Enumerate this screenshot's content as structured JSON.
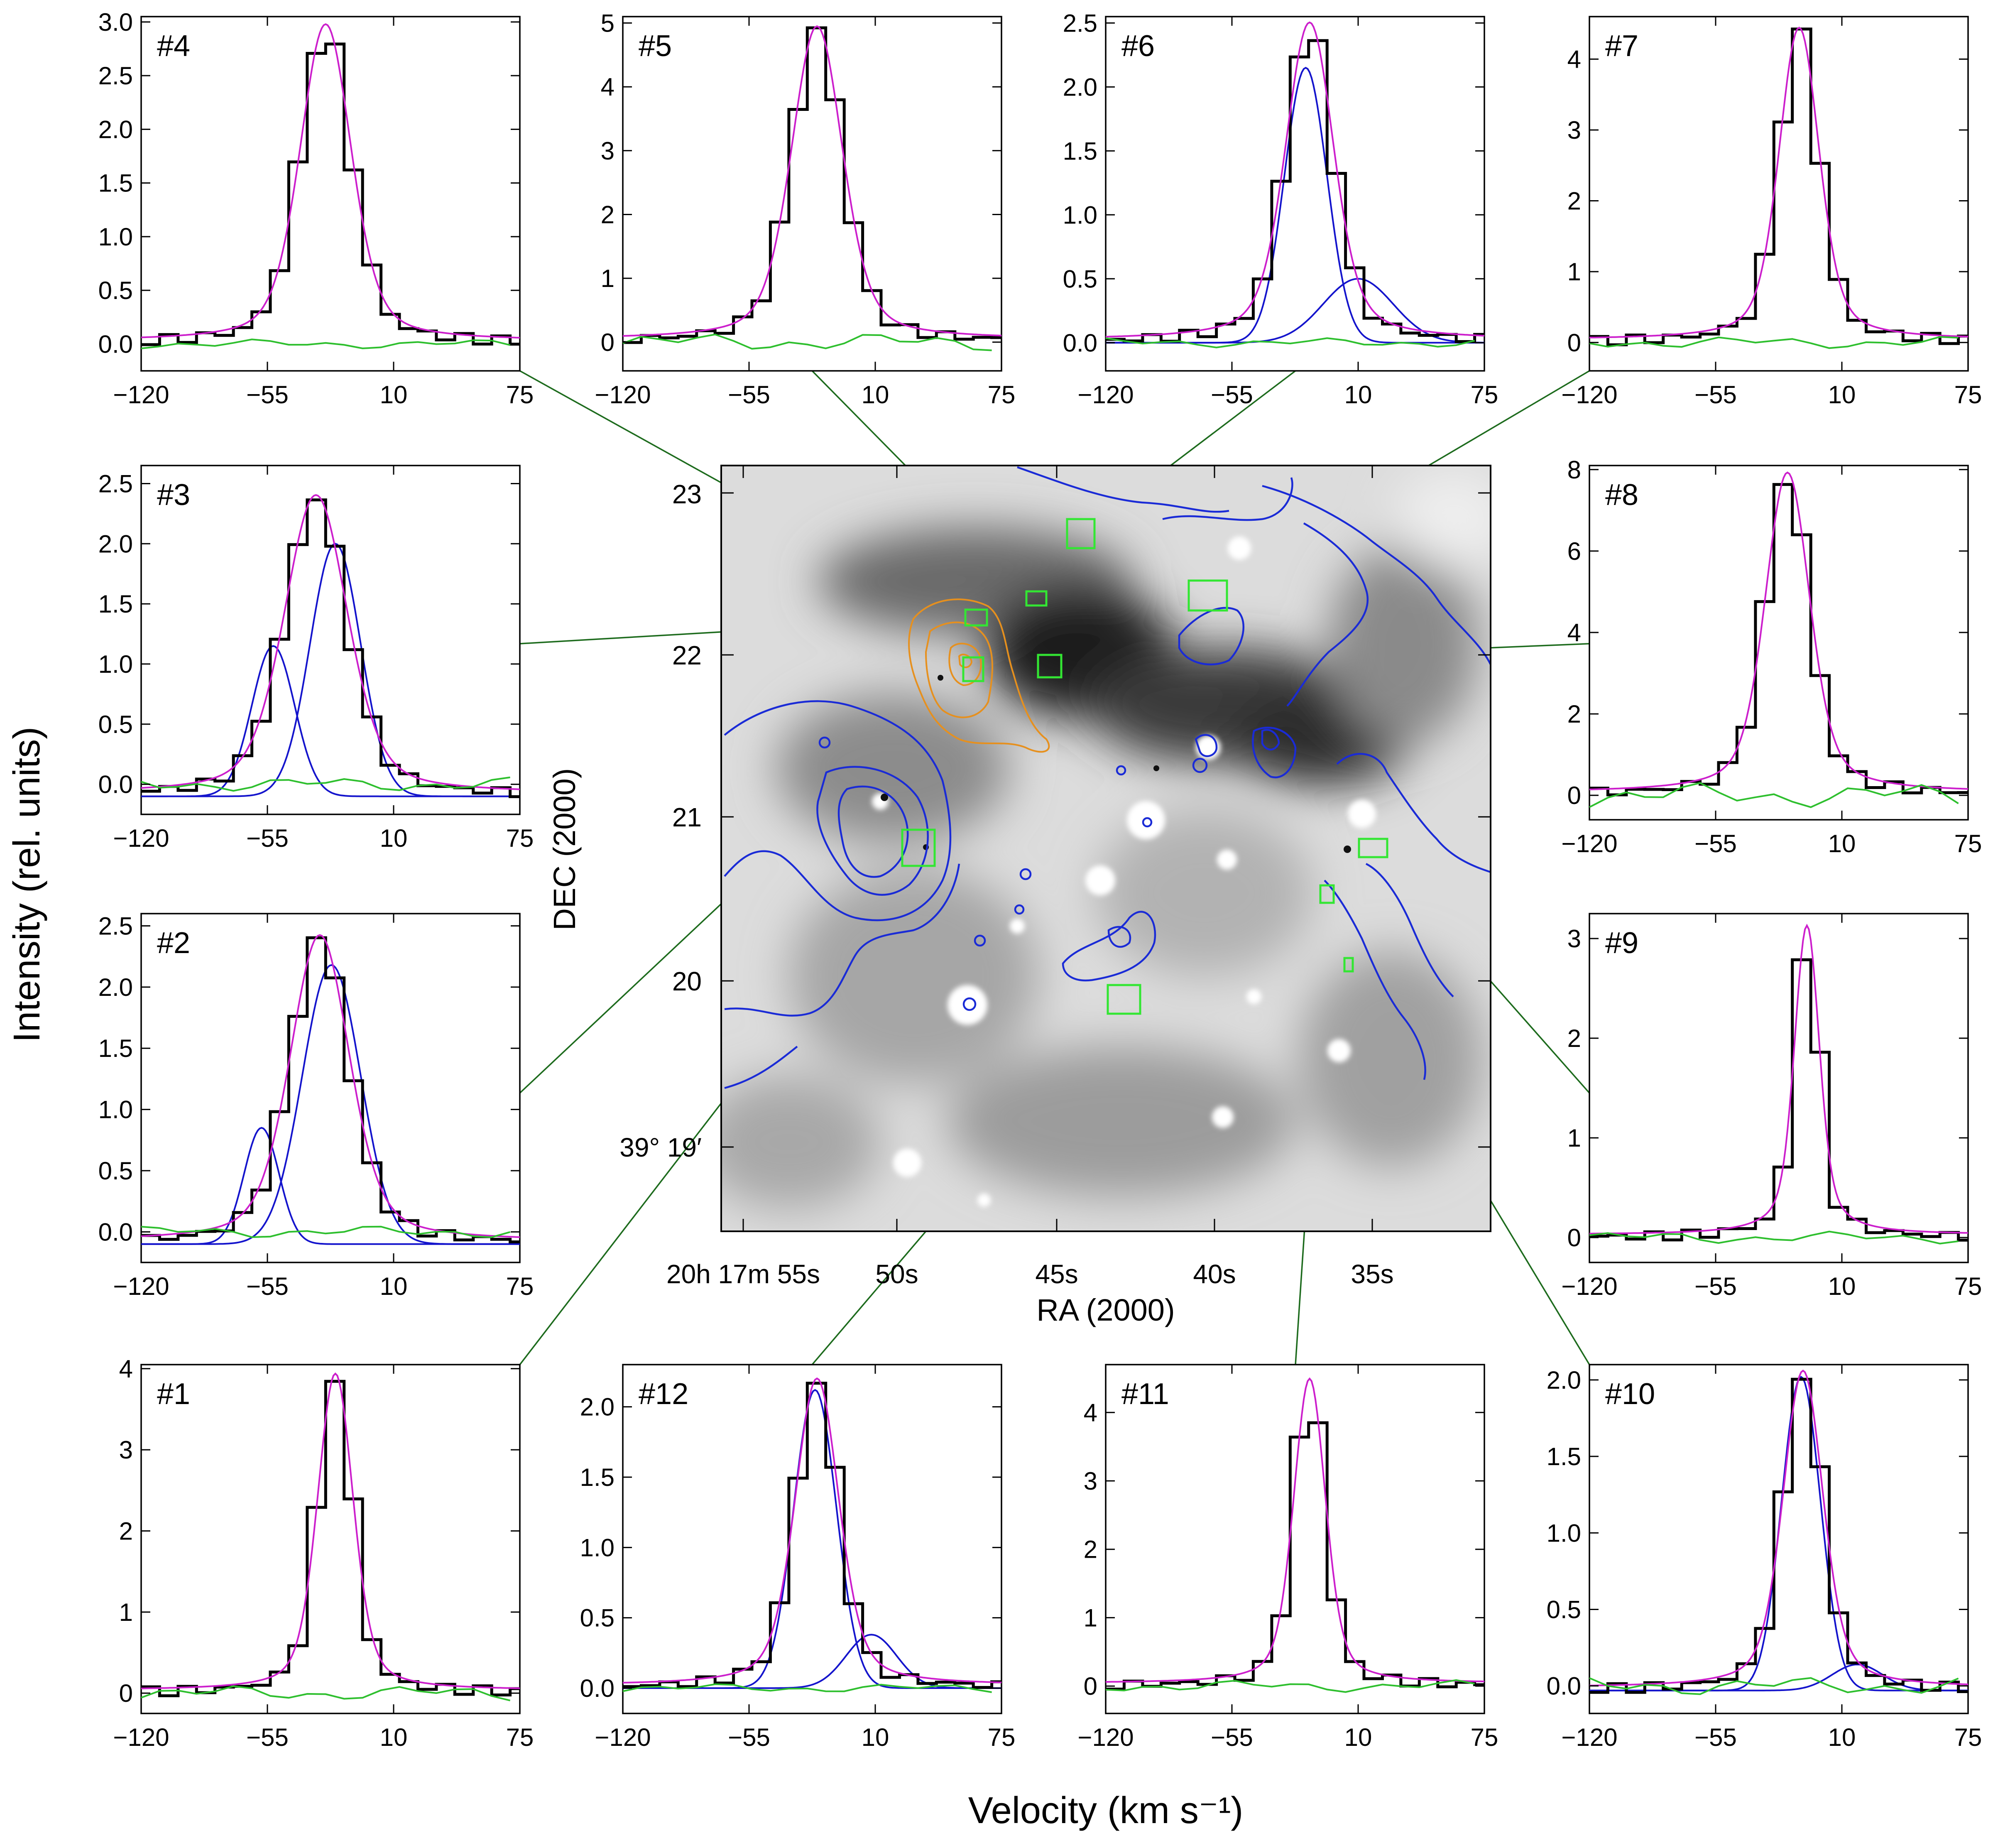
{
  "figure": {
    "ylabel": "Intensity (rel. units)",
    "xlabel": "Velocity (km s⁻¹)",
    "colors": {
      "observed": "#000000",
      "total_fit": "#cc1fcc",
      "components": "#1414cc",
      "residual": "#2ebf2e",
      "leader": "#1d6b1d",
      "aperture": "#33e633",
      "contour_blue": "#1a2bd6",
      "contour_orange": "#e6901e"
    }
  },
  "map": {
    "ra_label": "RA (2000)",
    "dec_label": "DEC (2000)",
    "ra_ticks": [
      "20h 17m 55s",
      "50s",
      "45s",
      "40s",
      "35s"
    ],
    "dec_ticks": [
      "23",
      "22",
      "21",
      "20",
      "39° 19′"
    ]
  },
  "chart_data": [
    {
      "type": "line",
      "label": "#1",
      "xlabel": "Velocity (km s⁻¹)",
      "ylabel": "Intensity (rel. units)",
      "xlim": [
        -120,
        75
      ],
      "ylim": [
        -0.25,
        4.05
      ],
      "x_ticks": [
        "−120",
        "−55",
        "10",
        "75"
      ],
      "y_ticks": [
        "0",
        "1",
        "2",
        "3",
        "4"
      ],
      "y_tick_values": [
        0,
        1,
        2,
        3,
        4
      ],
      "peak": 3.9,
      "center": -20,
      "sigma": 9,
      "gamma": 12,
      "components": [],
      "residual_amp": 0.05
    },
    {
      "type": "line",
      "label": "#2",
      "xlabel": "Velocity (km s⁻¹)",
      "ylabel": "Intensity (rel. units)",
      "xlim": [
        -120,
        75
      ],
      "ylim": [
        -0.25,
        2.6
      ],
      "x_ticks": [
        "−120",
        "−55",
        "10",
        "75"
      ],
      "y_ticks": [
        "0.0",
        "0.5",
        "1.0",
        "1.5",
        "2.0",
        "2.5"
      ],
      "y_tick_values": [
        0,
        0.5,
        1.0,
        1.5,
        2.0,
        2.5
      ],
      "peak": 2.5,
      "center": -28,
      "sigma": 15,
      "gamma": 20,
      "components": [
        {
          "amp": 0.95,
          "center": -58,
          "sigma": 9
        },
        {
          "amp": 2.28,
          "center": -22,
          "sigma": 15
        }
      ],
      "baseline": -0.1,
      "residual_amp": 0.04
    },
    {
      "type": "line",
      "label": "#3",
      "xlabel": "Velocity (km s⁻¹)",
      "ylabel": "Intensity (rel. units)",
      "xlim": [
        -120,
        75
      ],
      "ylim": [
        -0.25,
        2.65
      ],
      "x_ticks": [
        "−120",
        "−55",
        "10",
        "75"
      ],
      "y_ticks": [
        "0.0",
        "0.5",
        "1.0",
        "1.5",
        "2.0",
        "2.5"
      ],
      "y_tick_values": [
        0,
        0.5,
        1.0,
        1.5,
        2.0,
        2.5
      ],
      "peak": 2.48,
      "center": -30,
      "sigma": 16,
      "gamma": 21,
      "components": [
        {
          "amp": 1.25,
          "center": -52,
          "sigma": 11
        },
        {
          "amp": 2.1,
          "center": -20,
          "sigma": 13
        }
      ],
      "baseline": -0.1,
      "residual_amp": 0.05
    },
    {
      "type": "line",
      "label": "#4",
      "xlabel": "Velocity (km s⁻¹)",
      "ylabel": "Intensity (rel. units)",
      "xlim": [
        -120,
        75
      ],
      "ylim": [
        -0.25,
        3.05
      ],
      "x_ticks": [
        "−120",
        "−55",
        "10",
        "75"
      ],
      "y_ticks": [
        "0.0",
        "0.5",
        "1.0",
        "1.5",
        "2.0",
        "2.5",
        "3.0"
      ],
      "y_tick_values": [
        0,
        0.5,
        1.0,
        1.5,
        2.0,
        2.5,
        3.0
      ],
      "peak": 2.95,
      "center": -25,
      "sigma": 13,
      "gamma": 17,
      "components": [],
      "residual_amp": 0.03
    },
    {
      "type": "line",
      "label": "#5",
      "xlabel": "Velocity (km s⁻¹)",
      "ylabel": "Intensity (rel. units)",
      "xlim": [
        -120,
        75
      ],
      "ylim": [
        -0.45,
        5.1
      ],
      "x_ticks": [
        "−120",
        "−55",
        "10",
        "75"
      ],
      "y_ticks": [
        "0",
        "1",
        "2",
        "3",
        "4",
        "5"
      ],
      "y_tick_values": [
        0,
        1,
        2,
        3,
        4,
        5
      ],
      "peak": 4.9,
      "center": -20,
      "sigma": 13,
      "gamma": 17,
      "components": [],
      "residual_amp": 0.06
    },
    {
      "type": "line",
      "label": "#6",
      "xlabel": "Velocity (km s⁻¹)",
      "ylabel": "Intensity (rel. units)",
      "xlim": [
        -120,
        75
      ],
      "ylim": [
        -0.22,
        2.55
      ],
      "x_ticks": [
        "−120",
        "−55",
        "10",
        "75"
      ],
      "y_ticks": [
        "0.0",
        "0.5",
        "1.0",
        "1.5",
        "2.0",
        "2.5"
      ],
      "y_tick_values": [
        0,
        0.5,
        1.0,
        1.5,
        2.0,
        2.5
      ],
      "peak": 2.48,
      "center": -15,
      "sigma": 12,
      "gamma": 17,
      "components": [
        {
          "amp": 2.15,
          "center": -17,
          "sigma": 11
        },
        {
          "amp": 0.5,
          "center": 10,
          "sigma": 18
        }
      ],
      "residual_amp": 0.03
    },
    {
      "type": "line",
      "label": "#7",
      "xlabel": "Velocity (km s⁻¹)",
      "ylabel": "Intensity (rel. units)",
      "xlim": [
        -120,
        75
      ],
      "ylim": [
        -0.4,
        4.6
      ],
      "x_ticks": [
        "−120",
        "−55",
        "10",
        "75"
      ],
      "y_ticks": [
        "0",
        "1",
        "2",
        "3",
        "4"
      ],
      "y_tick_values": [
        0,
        1,
        2,
        3,
        4
      ],
      "peak": 4.4,
      "center": -12,
      "sigma": 10,
      "gamma": 14,
      "components": [],
      "residual_amp": 0.04
    },
    {
      "type": "line",
      "label": "#8",
      "xlabel": "Velocity (km s⁻¹)",
      "ylabel": "Intensity (rel. units)",
      "xlim": [
        -120,
        75
      ],
      "ylim": [
        -0.6,
        8.1
      ],
      "x_ticks": [
        "−120",
        "−55",
        "10",
        "75"
      ],
      "y_ticks": [
        "0",
        "2",
        "4",
        "6",
        "8"
      ],
      "y_tick_values": [
        0,
        2,
        4,
        6,
        8
      ],
      "peak": 7.85,
      "center": -18,
      "sigma": 11,
      "gamma": 16,
      "components": [],
      "residual_amp": 0.08
    },
    {
      "type": "line",
      "label": "#9",
      "xlabel": "Velocity (km s⁻¹)",
      "ylabel": "Intensity (rel. units)",
      "xlim": [
        -120,
        75
      ],
      "ylim": [
        -0.25,
        3.25
      ],
      "x_ticks": [
        "−120",
        "−55",
        "10",
        "75"
      ],
      "y_ticks": [
        "0",
        "1",
        "2",
        "3"
      ],
      "y_tick_values": [
        0,
        1,
        2,
        3
      ],
      "peak": 3.1,
      "center": -8,
      "sigma": 6,
      "gamma": 10,
      "components": [],
      "residual_amp": 0.04
    },
    {
      "type": "line",
      "label": "#10",
      "xlabel": "Velocity (km s⁻¹)",
      "ylabel": "Intensity (rel. units)",
      "xlim": [
        -120,
        75
      ],
      "ylim": [
        -0.18,
        2.1
      ],
      "x_ticks": [
        "−120",
        "−55",
        "10",
        "75"
      ],
      "y_ticks": [
        "0.0",
        "0.5",
        "1.0",
        "1.5",
        "2.0"
      ],
      "y_tick_values": [
        0,
        0.5,
        1.0,
        1.5,
        2.0
      ],
      "peak": 2.07,
      "center": -10,
      "sigma": 10,
      "gamma": 14,
      "components": [
        {
          "amp": 2.05,
          "center": -11,
          "sigma": 10
        },
        {
          "amp": 0.17,
          "center": 18,
          "sigma": 13
        }
      ],
      "baseline": -0.03,
      "residual_amp": 0.06
    },
    {
      "type": "line",
      "label": "#11",
      "xlabel": "Velocity (km s⁻¹)",
      "ylabel": "Intensity (rel. units)",
      "xlim": [
        -120,
        75
      ],
      "ylim": [
        -0.4,
        4.7
      ],
      "x_ticks": [
        "−120",
        "−55",
        "10",
        "75"
      ],
      "y_ticks": [
        "0",
        "1",
        "2",
        "3",
        "4"
      ],
      "y_tick_values": [
        0,
        1,
        2,
        3,
        4
      ],
      "peak": 4.45,
      "center": -15,
      "sigma": 8,
      "gamma": 11,
      "components": [],
      "residual_amp": 0.04
    },
    {
      "type": "line",
      "label": "#12",
      "xlabel": "Velocity (km s⁻¹)",
      "ylabel": "Intensity (rel. units)",
      "xlim": [
        -120,
        75
      ],
      "ylim": [
        -0.18,
        2.3
      ],
      "x_ticks": [
        "−120",
        "−55",
        "10",
        "75"
      ],
      "y_ticks": [
        "0.0",
        "0.5",
        "1.0",
        "1.5",
        "2.0"
      ],
      "y_tick_values": [
        0,
        0.5,
        1.0,
        1.5,
        2.0
      ],
      "peak": 2.18,
      "center": -20,
      "sigma": 11,
      "gamma": 15,
      "components": [
        {
          "amp": 2.12,
          "center": -21,
          "sigma": 11
        },
        {
          "amp": 0.38,
          "center": 8,
          "sigma": 13
        }
      ],
      "residual_amp": 0.03
    }
  ]
}
